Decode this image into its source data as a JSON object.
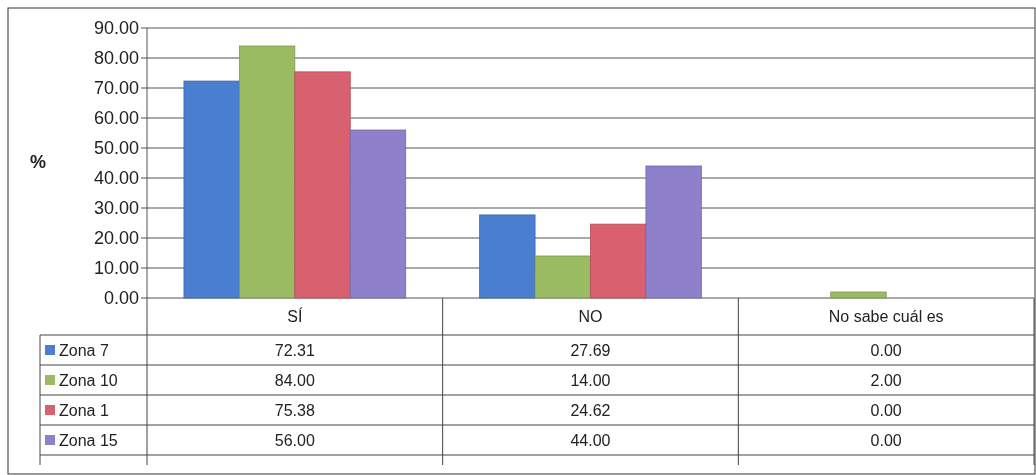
{
  "chart_data": {
    "type": "bar",
    "ylabel": "%",
    "categories": [
      "SÍ",
      "NO",
      "No sabe cuál es"
    ],
    "series": [
      {
        "name": "Zona 7",
        "color": "#4a7fd0",
        "values": [
          72.31,
          27.69,
          0.0
        ],
        "value_labels": [
          "72.31",
          "27.69",
          "0.00"
        ]
      },
      {
        "name": "Zona 10",
        "color": "#9bbb63",
        "values": [
          84.0,
          14.0,
          2.0
        ],
        "value_labels": [
          "84.00",
          "14.00",
          "2.00"
        ]
      },
      {
        "name": "Zona 1",
        "color": "#d9606e",
        "values": [
          75.38,
          24.62,
          0.0
        ],
        "value_labels": [
          "75.38",
          "24.62",
          "0.00"
        ]
      },
      {
        "name": "Zona 15",
        "color": "#8f80cc",
        "values": [
          56.0,
          44.0,
          0.0
        ],
        "value_labels": [
          "56.00",
          "44.00",
          "0.00"
        ]
      }
    ],
    "ylim": [
      0,
      90
    ],
    "yticks": [
      {
        "value": 0,
        "label": "0.00"
      },
      {
        "value": 10,
        "label": "10.00"
      },
      {
        "value": 20,
        "label": "20.00"
      },
      {
        "value": 30,
        "label": "30.00"
      },
      {
        "value": 40,
        "label": "40.00"
      },
      {
        "value": 50,
        "label": "50.00"
      },
      {
        "value": 60,
        "label": "60.00"
      },
      {
        "value": 70,
        "label": "70.00"
      },
      {
        "value": 80,
        "label": "80.00"
      },
      {
        "value": 90,
        "label": "90.00"
      }
    ],
    "grid": "y",
    "legend": "bottom"
  }
}
